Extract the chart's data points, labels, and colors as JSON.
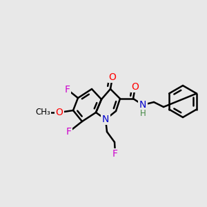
{
  "background_color": "#e8e8e8",
  "bond_color": "#000000",
  "bond_width": 1.8,
  "atom_colors": {
    "N": "#0000cc",
    "O": "#ff0000",
    "F": "#cc00cc",
    "H": "#448844",
    "C": "#000000"
  },
  "font_size": 10,
  "font_size_small": 8.5
}
